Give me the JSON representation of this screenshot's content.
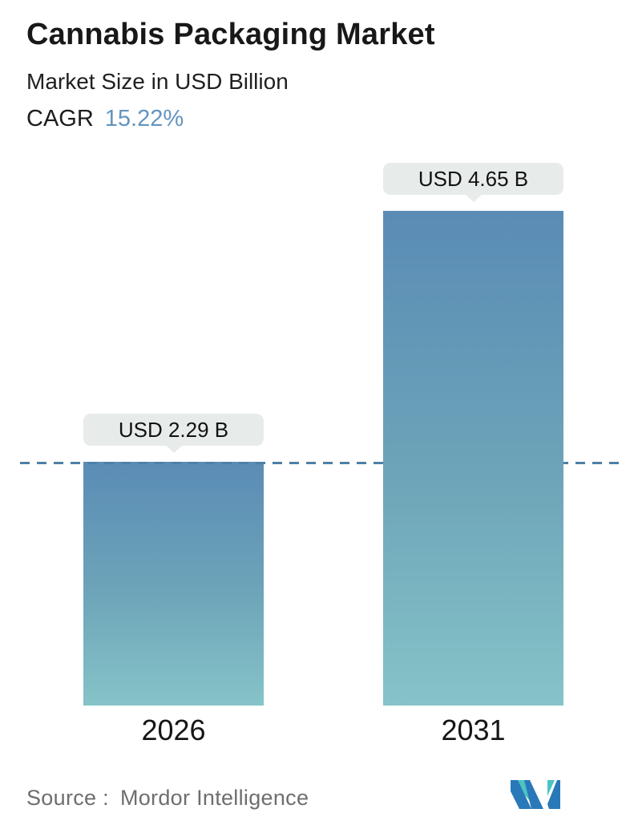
{
  "header": {
    "title": "Cannabis Packaging Market",
    "subtitle": "Market Size in USD Billion",
    "cagr_label": "CAGR",
    "cagr_value": "15.22%"
  },
  "chart_data": {
    "type": "bar",
    "categories": [
      "2026",
      "2031"
    ],
    "values": [
      2.29,
      4.65
    ],
    "value_labels": [
      "USD 2.29 B",
      "USD 4.65 B"
    ],
    "title": "Cannabis Packaging Market",
    "subtitle": "Market Size in USD Billion",
    "cagr_percent": 15.22,
    "unit": "USD Billion",
    "ylim": [
      0,
      4.65
    ],
    "grid": false,
    "legend": "none",
    "reference_line": {
      "style": "dashed",
      "at_value": 2.29,
      "color": "#4d80a8"
    },
    "bar_gradient_top": "#5a8cb5",
    "bar_gradient_bottom": "#85c4c8",
    "annotation_style": "tooltip-badge"
  },
  "footer": {
    "source_label": "Source :",
    "source_value": "Mordor Intelligence",
    "logo_name": "mordor-intelligence-logo"
  },
  "colors": {
    "accent_blue": "#6395bf",
    "dashed_line": "#4d80a8",
    "badge_background": "#e7eceb",
    "logo_teal": "#4cc4c4",
    "logo_blue": "#2979b8"
  }
}
